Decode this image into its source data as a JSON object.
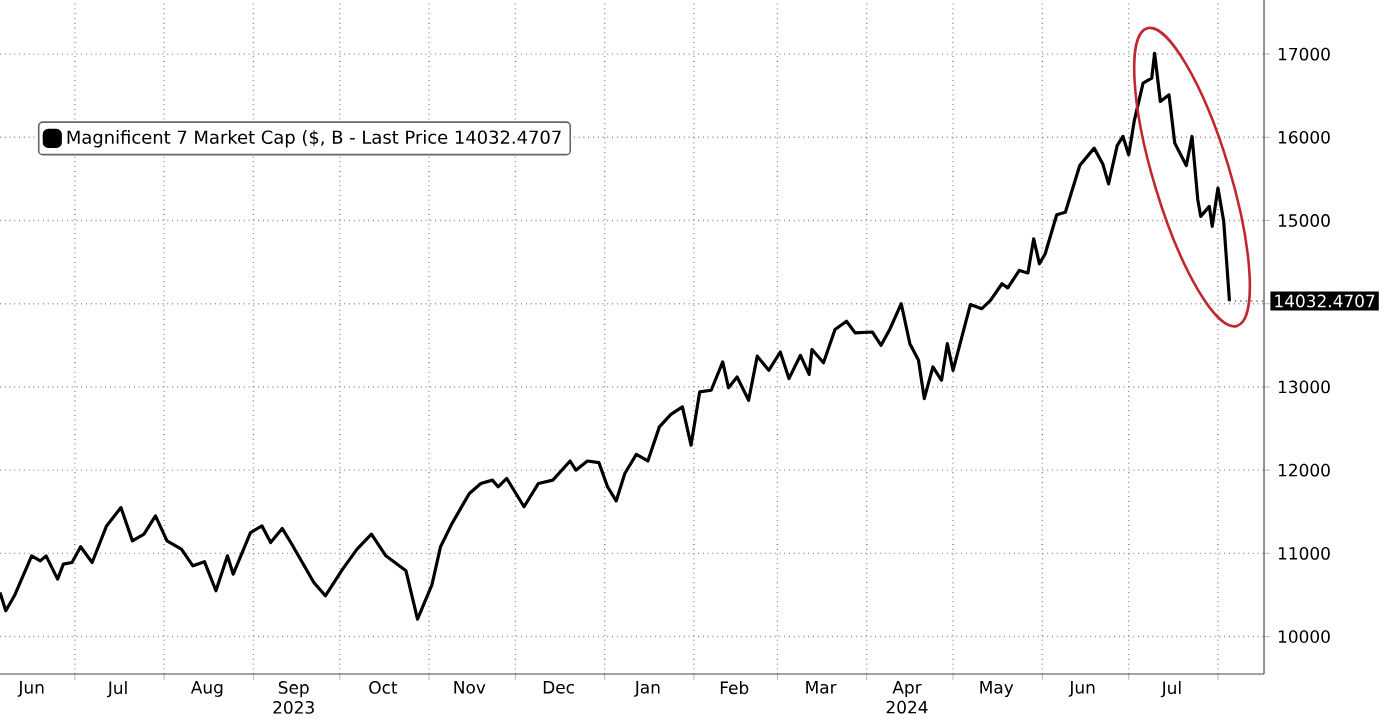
{
  "chart_data": {
    "type": "line",
    "legend": "top left",
    "grid": true,
    "xlim": [
      "2023-06-05",
      "2024-08-17"
    ],
    "ylim": [
      9550,
      17650
    ],
    "xticks": [
      {
        "value": "2023-07-01",
        "label": null
      },
      {
        "value": "2023-08-01",
        "label": null
      },
      {
        "value": "2023-09-01",
        "label": null
      },
      {
        "value": "2023-10-01",
        "label": null
      },
      {
        "value": "2023-11-01",
        "label": null
      },
      {
        "value": "2023-12-01",
        "label": null
      },
      {
        "value": "2024-01-01",
        "label": null
      },
      {
        "value": "2024-02-01",
        "label": null
      },
      {
        "value": "2024-03-01",
        "label": null
      },
      {
        "value": "2024-04-01",
        "label": null
      },
      {
        "value": "2024-05-01",
        "label": null
      },
      {
        "value": "2024-06-01",
        "label": null
      },
      {
        "value": "2024-07-01",
        "label": null
      },
      {
        "value": "2024-08-01",
        "label": null
      },
      {
        "value": "2023-06-16",
        "label": "Jun"
      },
      {
        "value": "2023-07-16",
        "label": "Jul"
      },
      {
        "value": "2023-08-16",
        "label": "Aug"
      },
      {
        "value": "2023-09-15",
        "label": "Sep 2023"
      },
      {
        "value": "2023-10-16",
        "label": "Oct"
      },
      {
        "value": "2023-11-15",
        "label": "Nov"
      },
      {
        "value": "2023-12-16",
        "label": "Dec"
      },
      {
        "value": "2024-01-16",
        "label": "Jan"
      },
      {
        "value": "2024-02-15",
        "label": "Feb"
      },
      {
        "value": "2024-03-16",
        "label": "Mar"
      },
      {
        "value": "2024-04-15",
        "label": "Apr 2024"
      },
      {
        "value": "2024-05-16",
        "label": "May"
      },
      {
        "value": "2024-06-15",
        "label": "Jun"
      },
      {
        "value": "2024-07-16",
        "label": "Jul"
      }
    ],
    "yticks": [
      10000,
      11000,
      12000,
      13000,
      {
        "value": 14000,
        "label": null
      },
      15000,
      16000,
      17000
    ],
    "x": [
      "2023-06-05",
      "2023-06-07",
      "2023-06-10",
      "2023-06-16",
      "2023-06-19",
      "2023-06-21",
      "2023-06-25",
      "2023-06-27",
      "2023-06-30",
      "2023-07-03",
      "2023-07-07",
      "2023-07-12",
      "2023-07-17",
      "2023-07-21",
      "2023-07-25",
      "2023-07-29",
      "2023-08-02",
      "2023-08-07",
      "2023-08-11",
      "2023-08-15",
      "2023-08-19",
      "2023-08-23",
      "2023-08-25",
      "2023-08-31",
      "2023-09-04",
      "2023-09-07",
      "2023-09-11",
      "2023-09-14",
      "2023-09-22",
      "2023-09-26",
      "2023-10-02",
      "2023-10-07",
      "2023-10-12",
      "2023-10-17",
      "2023-10-24",
      "2023-10-28",
      "2023-11-02",
      "2023-11-05",
      "2023-11-09",
      "2023-11-12",
      "2023-11-15",
      "2023-11-19",
      "2023-11-23",
      "2023-11-25",
      "2023-11-28",
      "2023-12-04",
      "2023-12-09",
      "2023-12-14",
      "2023-12-20",
      "2023-12-22",
      "2023-12-26",
      "2023-12-30",
      "2024-01-02",
      "2024-01-05",
      "2024-01-08",
      "2024-01-12",
      "2024-01-16",
      "2024-01-20",
      "2024-01-24",
      "2024-01-28",
      "2024-01-31",
      "2024-02-03",
      "2024-02-07",
      "2024-02-11",
      "2024-02-13",
      "2024-02-16",
      "2024-02-20",
      "2024-02-23",
      "2024-02-27",
      "2024-03-02",
      "2024-03-05",
      "2024-03-09",
      "2024-03-12",
      "2024-03-13",
      "2024-03-17",
      "2024-03-21",
      "2024-03-25",
      "2024-03-28",
      "2024-04-03",
      "2024-04-06",
      "2024-04-09",
      "2024-04-13",
      "2024-04-16",
      "2024-04-19",
      "2024-04-21",
      "2024-04-24",
      "2024-04-27",
      "2024-04-29",
      "2024-05-01",
      "2024-05-07",
      "2024-05-11",
      "2024-05-14",
      "2024-05-18",
      "2024-05-20",
      "2024-05-24",
      "2024-05-27",
      "2024-05-29",
      "2024-05-31",
      "2024-06-02",
      "2024-06-06",
      "2024-06-09",
      "2024-06-14",
      "2024-06-19",
      "2024-06-22",
      "2024-06-24",
      "2024-06-27",
      "2024-06-29",
      "2024-07-01",
      "2024-07-03",
      "2024-07-06",
      "2024-07-09",
      "2024-07-10",
      "2024-07-12",
      "2024-07-15",
      "2024-07-17",
      "2024-07-21",
      "2024-07-23",
      "2024-07-25",
      "2024-07-26",
      "2024-07-29",
      "2024-07-30",
      "2024-08-01",
      "2024-08-03",
      "2024-08-05"
    ],
    "series": [
      {
        "name": "Magnificent 7 Market Cap ($, B - Last Price 14032.4707",
        "color": "#000000",
        "values": [
          10530,
          10310,
          10490,
          10970,
          10910,
          10970,
          10690,
          10870,
          10890,
          11080,
          10890,
          11330,
          11550,
          11150,
          11230,
          11450,
          11150,
          11050,
          10850,
          10900,
          10550,
          10970,
          10750,
          11250,
          11330,
          11130,
          11300,
          11130,
          10650,
          10490,
          10810,
          11050,
          11230,
          10970,
          10790,
          10210,
          10620,
          11080,
          11360,
          11540,
          11720,
          11840,
          11880,
          11800,
          11900,
          11560,
          11840,
          11880,
          12110,
          12000,
          12110,
          12090,
          11800,
          11630,
          11960,
          12190,
          12110,
          12520,
          12670,
          12760,
          12300,
          12940,
          12960,
          13300,
          12990,
          13120,
          12840,
          13370,
          13200,
          13420,
          13100,
          13380,
          13150,
          13450,
          13290,
          13690,
          13790,
          13650,
          13660,
          13500,
          13690,
          14000,
          13520,
          13320,
          12860,
          13240,
          13080,
          13520,
          13200,
          13990,
          13940,
          14040,
          14240,
          14190,
          14400,
          14370,
          14780,
          14480,
          14600,
          15070,
          15100,
          15660,
          15870,
          15680,
          15440,
          15900,
          16010,
          15790,
          16210,
          16650,
          16710,
          17010,
          16430,
          16510,
          15930,
          15660,
          16010,
          15250,
          15050,
          15170,
          14930,
          15390,
          14990,
          14032.4707
        ]
      }
    ],
    "annotations": [
      {
        "text": "14032.4707",
        "x": "2024-08-05",
        "y": 14032.4707
      }
    ]
  }
}
